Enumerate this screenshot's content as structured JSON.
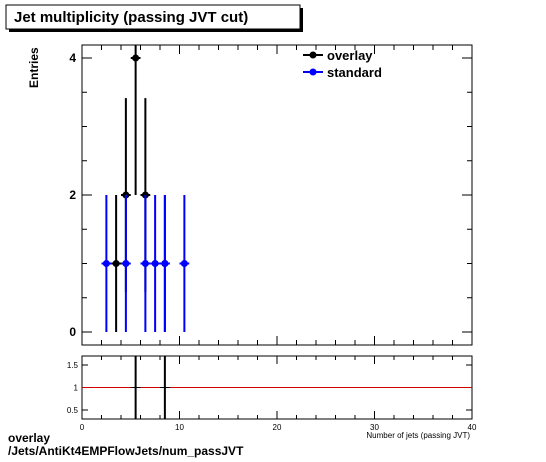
{
  "title": "Jet multiplicity (passing JVT cut)",
  "footer": {
    "line1": "overlay",
    "line2": "/Jets/AntiKt4EMPFlowJets/num_passJVT"
  },
  "colors": {
    "overlay": "#000000",
    "standard": "#0000ff",
    "ratio_line": "#cc0000"
  },
  "chart_data": [
    {
      "type": "scatter",
      "title": "Jet multiplicity (passing JVT cut)",
      "xlabel": "Number of jets (passing JVT)",
      "ylabel": "Entries",
      "xlim": [
        0,
        40
      ],
      "ylim": [
        0,
        4.2
      ],
      "yticks": [
        0,
        2,
        4
      ],
      "yticklabels": [
        "0",
        "2",
        "4"
      ],
      "legend_position": "top-right",
      "series": [
        {
          "name": "overlay",
          "color": "#000000",
          "points": [
            {
              "x": 3.5,
              "y": 1,
              "err": 1
            },
            {
              "x": 4.5,
              "y": 2,
              "err": 1.414
            },
            {
              "x": 5.5,
              "y": 4,
              "err": 2
            },
            {
              "x": 6.5,
              "y": 2,
              "err": 1.414
            },
            {
              "x": 8.5,
              "y": 1,
              "err": 1
            }
          ]
        },
        {
          "name": "standard",
          "color": "#0000ff",
          "points": [
            {
              "x": 2.5,
              "y": 1,
              "err": 1
            },
            {
              "x": 4.5,
              "y": 1,
              "err": 1
            },
            {
              "x": 6.5,
              "y": 1,
              "err": 1
            },
            {
              "x": 7.5,
              "y": 1,
              "err": 1
            },
            {
              "x": 8.5,
              "y": 1,
              "err": 1
            },
            {
              "x": 10.5,
              "y": 1,
              "err": 1
            }
          ]
        }
      ]
    },
    {
      "type": "scatter",
      "title": "",
      "xlim": [
        0,
        40
      ],
      "ylim": [
        0.3,
        1.7
      ],
      "xticks": [
        0,
        10,
        20,
        30,
        40
      ],
      "xticklabels": [
        "0",
        "10",
        "20",
        "30",
        "40"
      ],
      "yticks": [
        0.5,
        1,
        1.5
      ],
      "yticklabels": [
        "0.5",
        "1",
        "1.5"
      ],
      "reference_line": 1,
      "series": [
        {
          "name": "ratio",
          "color": "#000000",
          "points": [
            {
              "x": 5.5,
              "y": 1
            },
            {
              "x": 8.5,
              "y": 1
            }
          ]
        }
      ]
    }
  ]
}
